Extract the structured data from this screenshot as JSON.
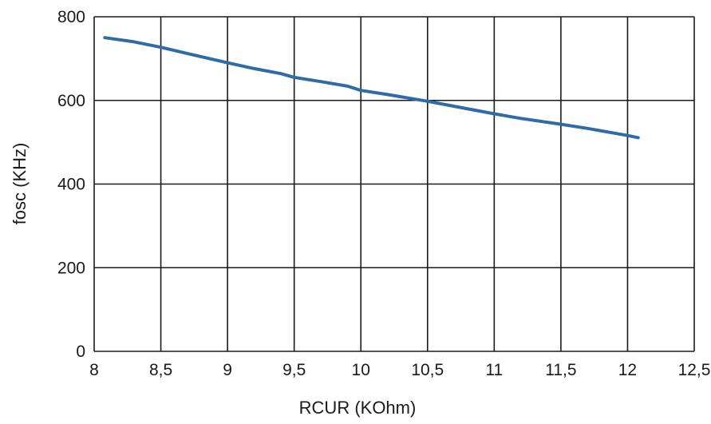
{
  "chart_data": {
    "type": "line",
    "title": "",
    "xlabel": "RCUR (KOhm)",
    "ylabel": "fosc (KHz)",
    "xlim": [
      8,
      12.5
    ],
    "ylim": [
      0,
      800
    ],
    "x_ticks": [
      8,
      8.5,
      9,
      9.5,
      10,
      10.5,
      11,
      11.5,
      12,
      12.5
    ],
    "x_tick_labels": [
      "8",
      "8,5",
      "9",
      "9,5",
      "10",
      "10,5",
      "11",
      "11,5",
      "12",
      "12,5"
    ],
    "y_ticks": [
      0,
      200,
      400,
      600,
      800
    ],
    "y_tick_labels": [
      "0",
      "200",
      "400",
      "600",
      "800"
    ],
    "grid": true,
    "legend": "none",
    "series": [
      {
        "color": "#2e6ca4",
        "x": [
          8.08,
          8.3,
          8.5,
          8.7,
          9.0,
          9.2,
          9.4,
          9.5,
          9.7,
          9.9,
          10.0,
          10.2,
          10.5,
          10.7,
          11.0,
          11.2,
          11.5,
          11.7,
          12.0,
          12.08
        ],
        "y": [
          750,
          740,
          727,
          712,
          690,
          676,
          664,
          655,
          645,
          634,
          624,
          614,
          598,
          586,
          568,
          557,
          543,
          533,
          516,
          511
        ]
      }
    ]
  }
}
